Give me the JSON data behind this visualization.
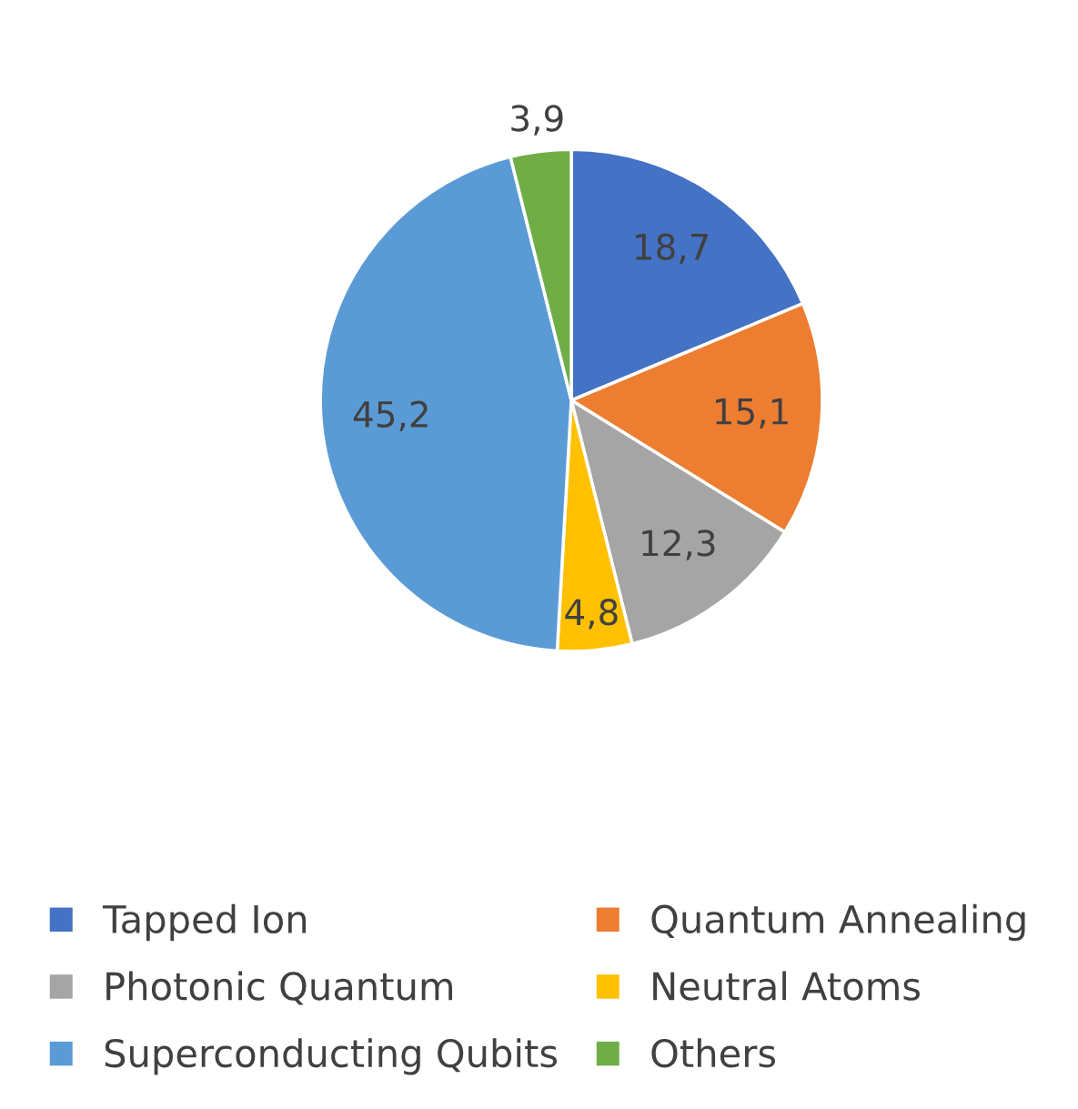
{
  "chart_data": {
    "type": "pie",
    "categories": [
      "Tapped Ion",
      "Quantum Annealing",
      "Photonic Quantum",
      "Neutral Atoms",
      "Superconducting Qubits",
      "Others"
    ],
    "values": [
      18.7,
      15.1,
      12.3,
      4.8,
      45.2,
      3.9
    ],
    "value_labels": [
      "18,7",
      "15,1",
      "12,3",
      "4,8",
      "45,2",
      "3,9"
    ],
    "colors": [
      "#4472c4",
      "#ed7d31",
      "#a5a5a5",
      "#ffc000",
      "#5b9bd5",
      "#70ad47"
    ],
    "legend": "bottom"
  }
}
